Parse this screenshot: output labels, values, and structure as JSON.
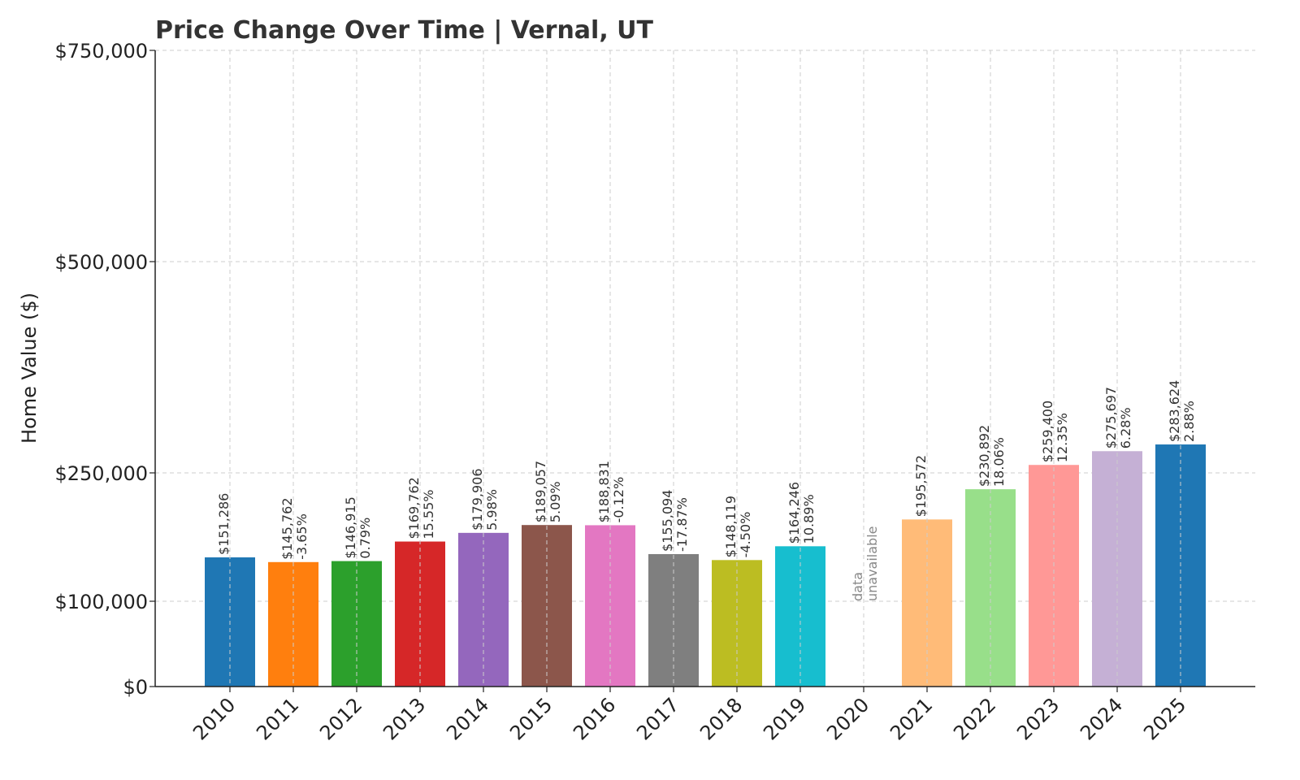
{
  "chart_data": {
    "type": "bar",
    "title": "Price Change Over Time | Vernal, UT",
    "xlabel": "",
    "ylabel": "Home Value ($)",
    "categories": [
      "2010",
      "2011",
      "2012",
      "2013",
      "2014",
      "2015",
      "2016",
      "2017",
      "2018",
      "2019",
      "2020",
      "2021",
      "2022",
      "2023",
      "2024",
      "2025"
    ],
    "values": [
      151286,
      145762,
      146915,
      169762,
      179906,
      189057,
      188831,
      155094,
      148119,
      164246,
      null,
      195572,
      230892,
      259400,
      275697,
      283624
    ],
    "value_labels": [
      "$151,286",
      "$145,762",
      "$146,915",
      "$169,762",
      "$179,906",
      "$189,057",
      "$188,831",
      "$155,094",
      "$148,119",
      "$164,246",
      null,
      "$195,572",
      "$230,892",
      "$259,400",
      "$275,697",
      "$283,624"
    ],
    "pct_labels": [
      null,
      "-3.65%",
      "0.79%",
      "15.55%",
      "5.98%",
      "5.09%",
      "-0.12%",
      "-17.87%",
      "-4.50%",
      "10.89%",
      null,
      null,
      "18.06%",
      "12.35%",
      "6.28%",
      "2.88%"
    ],
    "missing_label": [
      "data",
      "unavailable"
    ],
    "colors": [
      "#1f77b4",
      "#ff7f0e",
      "#2ca02c",
      "#d62728",
      "#9467bd",
      "#8c564b",
      "#e377c2",
      "#7f7f7f",
      "#bcbd22",
      "#17becf",
      "#aec7e8",
      "#ffbb78",
      "#98df8a",
      "#ff9896",
      "#c5b0d5",
      "#1f77b4"
    ],
    "yticks": [
      0,
      100000,
      250000,
      500000,
      750000
    ],
    "ytick_labels": [
      "$0",
      "$100,000",
      "$250,000",
      "$500,000",
      "$750,000"
    ],
    "ylim": [
      0,
      750000
    ],
    "grid": true
  }
}
